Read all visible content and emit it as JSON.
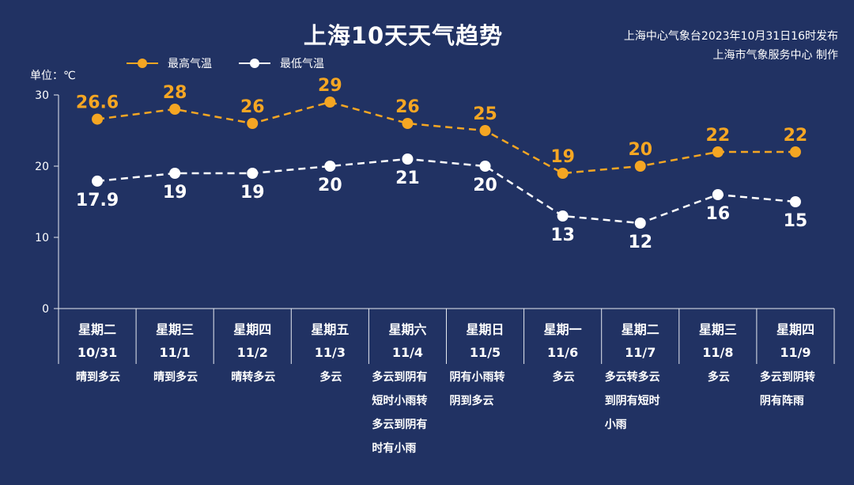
{
  "chart_data": {
    "type": "line",
    "title": "上海10天天气趋势",
    "issuer_lines": [
      "上海中心气象台2023年10月31日16时发布",
      "上海市气象服务中心 制作"
    ],
    "unit_label": "单位：℃",
    "ylim": [
      0,
      30
    ],
    "yticks": [
      0,
      10,
      20,
      30
    ],
    "ytick_labels": [
      "0",
      "10",
      "20",
      "30"
    ],
    "weekdays": [
      "星期二",
      "星期三",
      "星期四",
      "星期五",
      "星期六",
      "星期日",
      "星期一",
      "星期二",
      "星期三",
      "星期四"
    ],
    "dates": [
      "10/31",
      "11/1",
      "11/2",
      "11/3",
      "11/4",
      "11/5",
      "11/6",
      "11/7",
      "11/8",
      "11/9"
    ],
    "conditions": [
      "晴到多云",
      "晴到多云",
      "晴转多云",
      "多云",
      "多云到阴有\n短时小雨转\n多云到阴有\n时有小雨",
      "阴有小雨转\n阴到多云",
      "多云",
      "多云转多云\n到阴有短时\n小雨",
      "多云",
      "多云到阴转\n阴有阵雨"
    ],
    "series": [
      {
        "name": "最高气温",
        "color": "#f5a623",
        "values": [
          26.6,
          28,
          26,
          29,
          26,
          25,
          19,
          20,
          22,
          22
        ],
        "labels": [
          "26.6",
          "28",
          "26",
          "29",
          "26",
          "25",
          "19",
          "20",
          "22",
          "22"
        ]
      },
      {
        "name": "最低气温",
        "color": "#ffffff",
        "values": [
          17.9,
          19,
          19,
          20,
          21,
          20,
          13,
          12,
          16,
          15
        ],
        "labels": [
          "17.9",
          "19",
          "19",
          "20",
          "21",
          "20",
          "13",
          "12",
          "16",
          "15"
        ]
      }
    ],
    "grid": false,
    "legend": "top-left"
  }
}
